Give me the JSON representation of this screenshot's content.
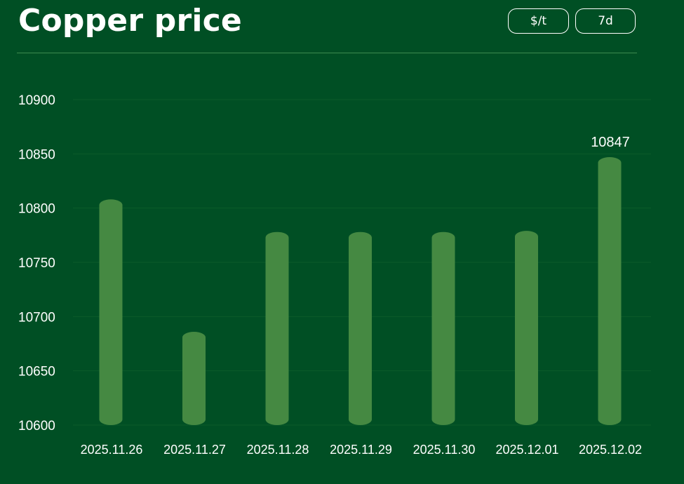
{
  "header": {
    "title": "Copper price",
    "unit_button": "$/t",
    "range_button": "7d"
  },
  "colors": {
    "background": "#004F24",
    "bar": "#458942",
    "grid": "#0B5B2A",
    "text": "#ffffff"
  },
  "chart_data": {
    "type": "bar",
    "categories": [
      "2025.11.26",
      "2025.11.27",
      "2025.11.28",
      "2025.11.29",
      "2025.11.30",
      "2025.12.01",
      "2025.12.02"
    ],
    "values": [
      10808,
      10686,
      10778,
      10778,
      10778,
      10779,
      10847
    ],
    "ylim": [
      10600,
      10900
    ],
    "yticks": [
      10600,
      10650,
      10700,
      10750,
      10800,
      10850,
      10900
    ],
    "data_labels": [
      {
        "index": 6,
        "text": "10847"
      }
    ],
    "grid": true
  }
}
